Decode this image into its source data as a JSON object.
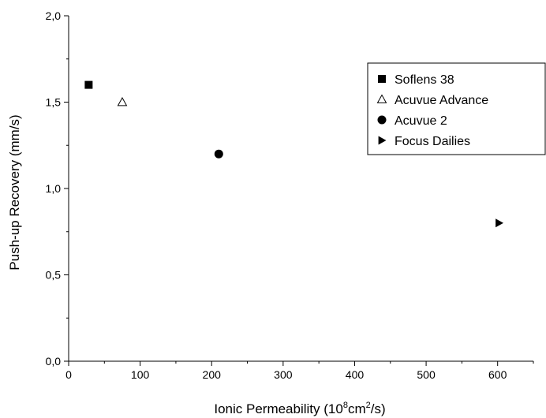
{
  "chart_data": {
    "type": "scatter",
    "title": "",
    "xlabel": {
      "prefix": "Ionic Permeability (10",
      "sup1": "8",
      "mid": "cm",
      "sup2": "2",
      "suffix": "/s)"
    },
    "ylabel": "Push-up Recovery (mm/s)",
    "xlim": [
      0,
      650
    ],
    "ylim": [
      0,
      2.0
    ],
    "x_ticks": [
      0,
      100,
      200,
      300,
      400,
      500,
      600
    ],
    "x_tick_labels": [
      "0",
      "100",
      "200",
      "300",
      "400",
      "500",
      "600"
    ],
    "y_ticks": [
      0,
      0.5,
      1.0,
      1.5,
      2.0
    ],
    "y_tick_labels": [
      "0,0",
      "0,5",
      "1,0",
      "1,5",
      "2,0"
    ],
    "grid": false,
    "legend_position": "top-right",
    "series": [
      {
        "name": "Soflens 38",
        "marker": "square",
        "color": "#000000",
        "points": [
          [
            28,
            1.6
          ]
        ]
      },
      {
        "name": "Acuvue Advance",
        "marker": "triangle-up-open",
        "color": "#000000",
        "points": [
          [
            75,
            1.5
          ]
        ]
      },
      {
        "name": "Acuvue 2",
        "marker": "circle",
        "color": "#000000",
        "points": [
          [
            210,
            1.2
          ]
        ]
      },
      {
        "name": "Focus Dailies",
        "marker": "triangle-right",
        "color": "#000000",
        "points": [
          [
            602,
            0.8
          ]
        ]
      }
    ]
  }
}
